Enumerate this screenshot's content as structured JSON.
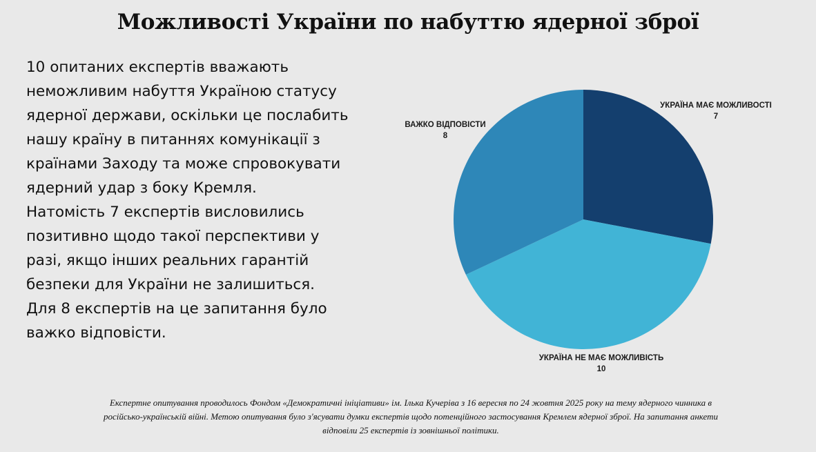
{
  "title": "Можливості України по набуттю ядерної зброї",
  "body": [
    "10 опитаних експертів вважають неможливим набуття Україною статусу ядерної держави, оскільки це послабить нашу країну в питаннях комунікації з країнами Заходу та може спровокувати ядерний удар з боку Кремля.",
    "Натомість 7 експертів висловились позитивно щодо такої перспективи у разі, якщо інших реальних гарантій безпеки для України не залишиться.",
    "Для 8 експертів на це запитання було важко відповісти."
  ],
  "chart_data": {
    "type": "pie",
    "start_angle_deg": 0,
    "direction": "clockwise",
    "slices": [
      {
        "label": "УКРАЇНА МАЄ МОЖЛИВОСТІ",
        "value": 7,
        "color": "#143f6e"
      },
      {
        "label": "УКРАЇНА НЕ МАЄ МОЖЛИВІСТЬ",
        "value": 10,
        "color": "#41b4d6"
      },
      {
        "label": "ВАЖКО ВІДПОВІСТИ",
        "value": 8,
        "color": "#2e87b8"
      }
    ]
  },
  "footnote": "Експертне опитування проводилось Фондом «Демократичні ініціативи» ім. Ілька Кучеріва з 16 вересня по 24 жовтня 2025 року на тему ядерного чинника в російсько-українській війні. Метою опитування було з'ясувати думки експертів щодо потенційного застосування Кремлем ядерної зброї. На запитання анкети відповіли 25 експертів із зовнішньої політики."
}
